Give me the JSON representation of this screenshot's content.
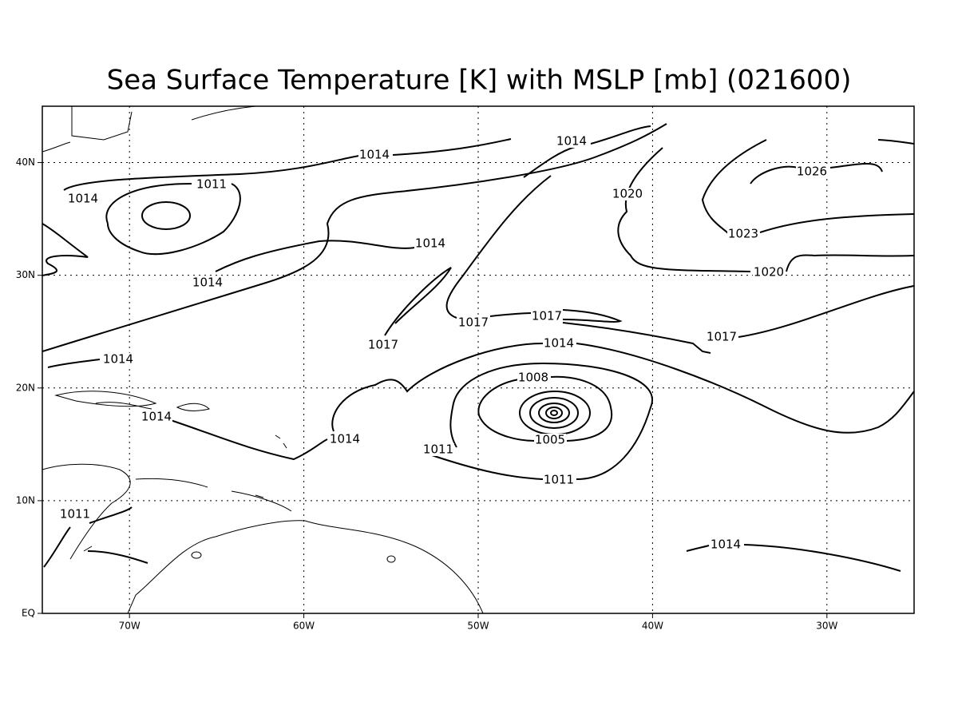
{
  "title": "Sea Surface Temperature [K] with MSLP [mb] (021600)",
  "map": {
    "xlim": [
      -75,
      -25
    ],
    "ylim": [
      0,
      45
    ],
    "xticks": [
      {
        "value": -70,
        "label": "70W"
      },
      {
        "value": -60,
        "label": "60W"
      },
      {
        "value": -50,
        "label": "50W"
      },
      {
        "value": -40,
        "label": "40W"
      },
      {
        "value": -30,
        "label": "30W"
      }
    ],
    "yticks": [
      {
        "value": 0,
        "label": "EQ"
      },
      {
        "value": 10,
        "label": "10N"
      },
      {
        "value": 20,
        "label": "20N"
      },
      {
        "value": 30,
        "label": "30N"
      },
      {
        "value": 40,
        "label": "40N"
      }
    ],
    "grid": true,
    "contour_labels": [
      "1014",
      "1014",
      "1014",
      "1011",
      "1020",
      "1026",
      "1023",
      "1014",
      "1014",
      "1020",
      "1017",
      "1017",
      "1017",
      "1017",
      "1014",
      "1014",
      "1008",
      "1014",
      "1005",
      "1014",
      "1011",
      "1011",
      "1011",
      "1014"
    ]
  }
}
